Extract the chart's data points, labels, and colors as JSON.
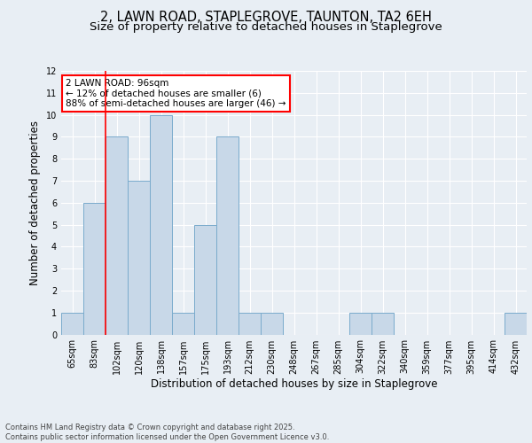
{
  "title1": "2, LAWN ROAD, STAPLEGROVE, TAUNTON, TA2 6EH",
  "title2": "Size of property relative to detached houses in Staplegrove",
  "xlabel": "Distribution of detached houses by size in Staplegrove",
  "ylabel": "Number of detached properties",
  "categories": [
    "65sqm",
    "83sqm",
    "102sqm",
    "120sqm",
    "138sqm",
    "157sqm",
    "175sqm",
    "193sqm",
    "212sqm",
    "230sqm",
    "248sqm",
    "267sqm",
    "285sqm",
    "304sqm",
    "322sqm",
    "340sqm",
    "359sqm",
    "377sqm",
    "395sqm",
    "414sqm",
    "432sqm"
  ],
  "values": [
    1,
    6,
    9,
    7,
    10,
    1,
    5,
    9,
    1,
    1,
    0,
    0,
    0,
    1,
    1,
    0,
    0,
    0,
    0,
    0,
    1
  ],
  "bar_color": "#c8d8e8",
  "bar_edge_color": "#7aabcc",
  "red_line_x": 1.5,
  "annotation_text": "2 LAWN ROAD: 96sqm\n← 12% of detached houses are smaller (6)\n88% of semi-detached houses are larger (46) →",
  "annotation_box_color": "white",
  "annotation_box_edge_color": "red",
  "ylim": [
    0,
    12
  ],
  "yticks": [
    0,
    1,
    2,
    3,
    4,
    5,
    6,
    7,
    8,
    9,
    10,
    11,
    12
  ],
  "footer_text": "Contains HM Land Registry data © Crown copyright and database right 2025.\nContains public sector information licensed under the Open Government Licence v3.0.",
  "background_color": "#e8eef4",
  "plot_bg_color": "#e8eef4",
  "grid_color": "white",
  "title1_fontsize": 10.5,
  "title2_fontsize": 9.5,
  "tick_fontsize": 7,
  "label_fontsize": 8.5,
  "annot_fontsize": 7.5,
  "footer_fontsize": 6
}
